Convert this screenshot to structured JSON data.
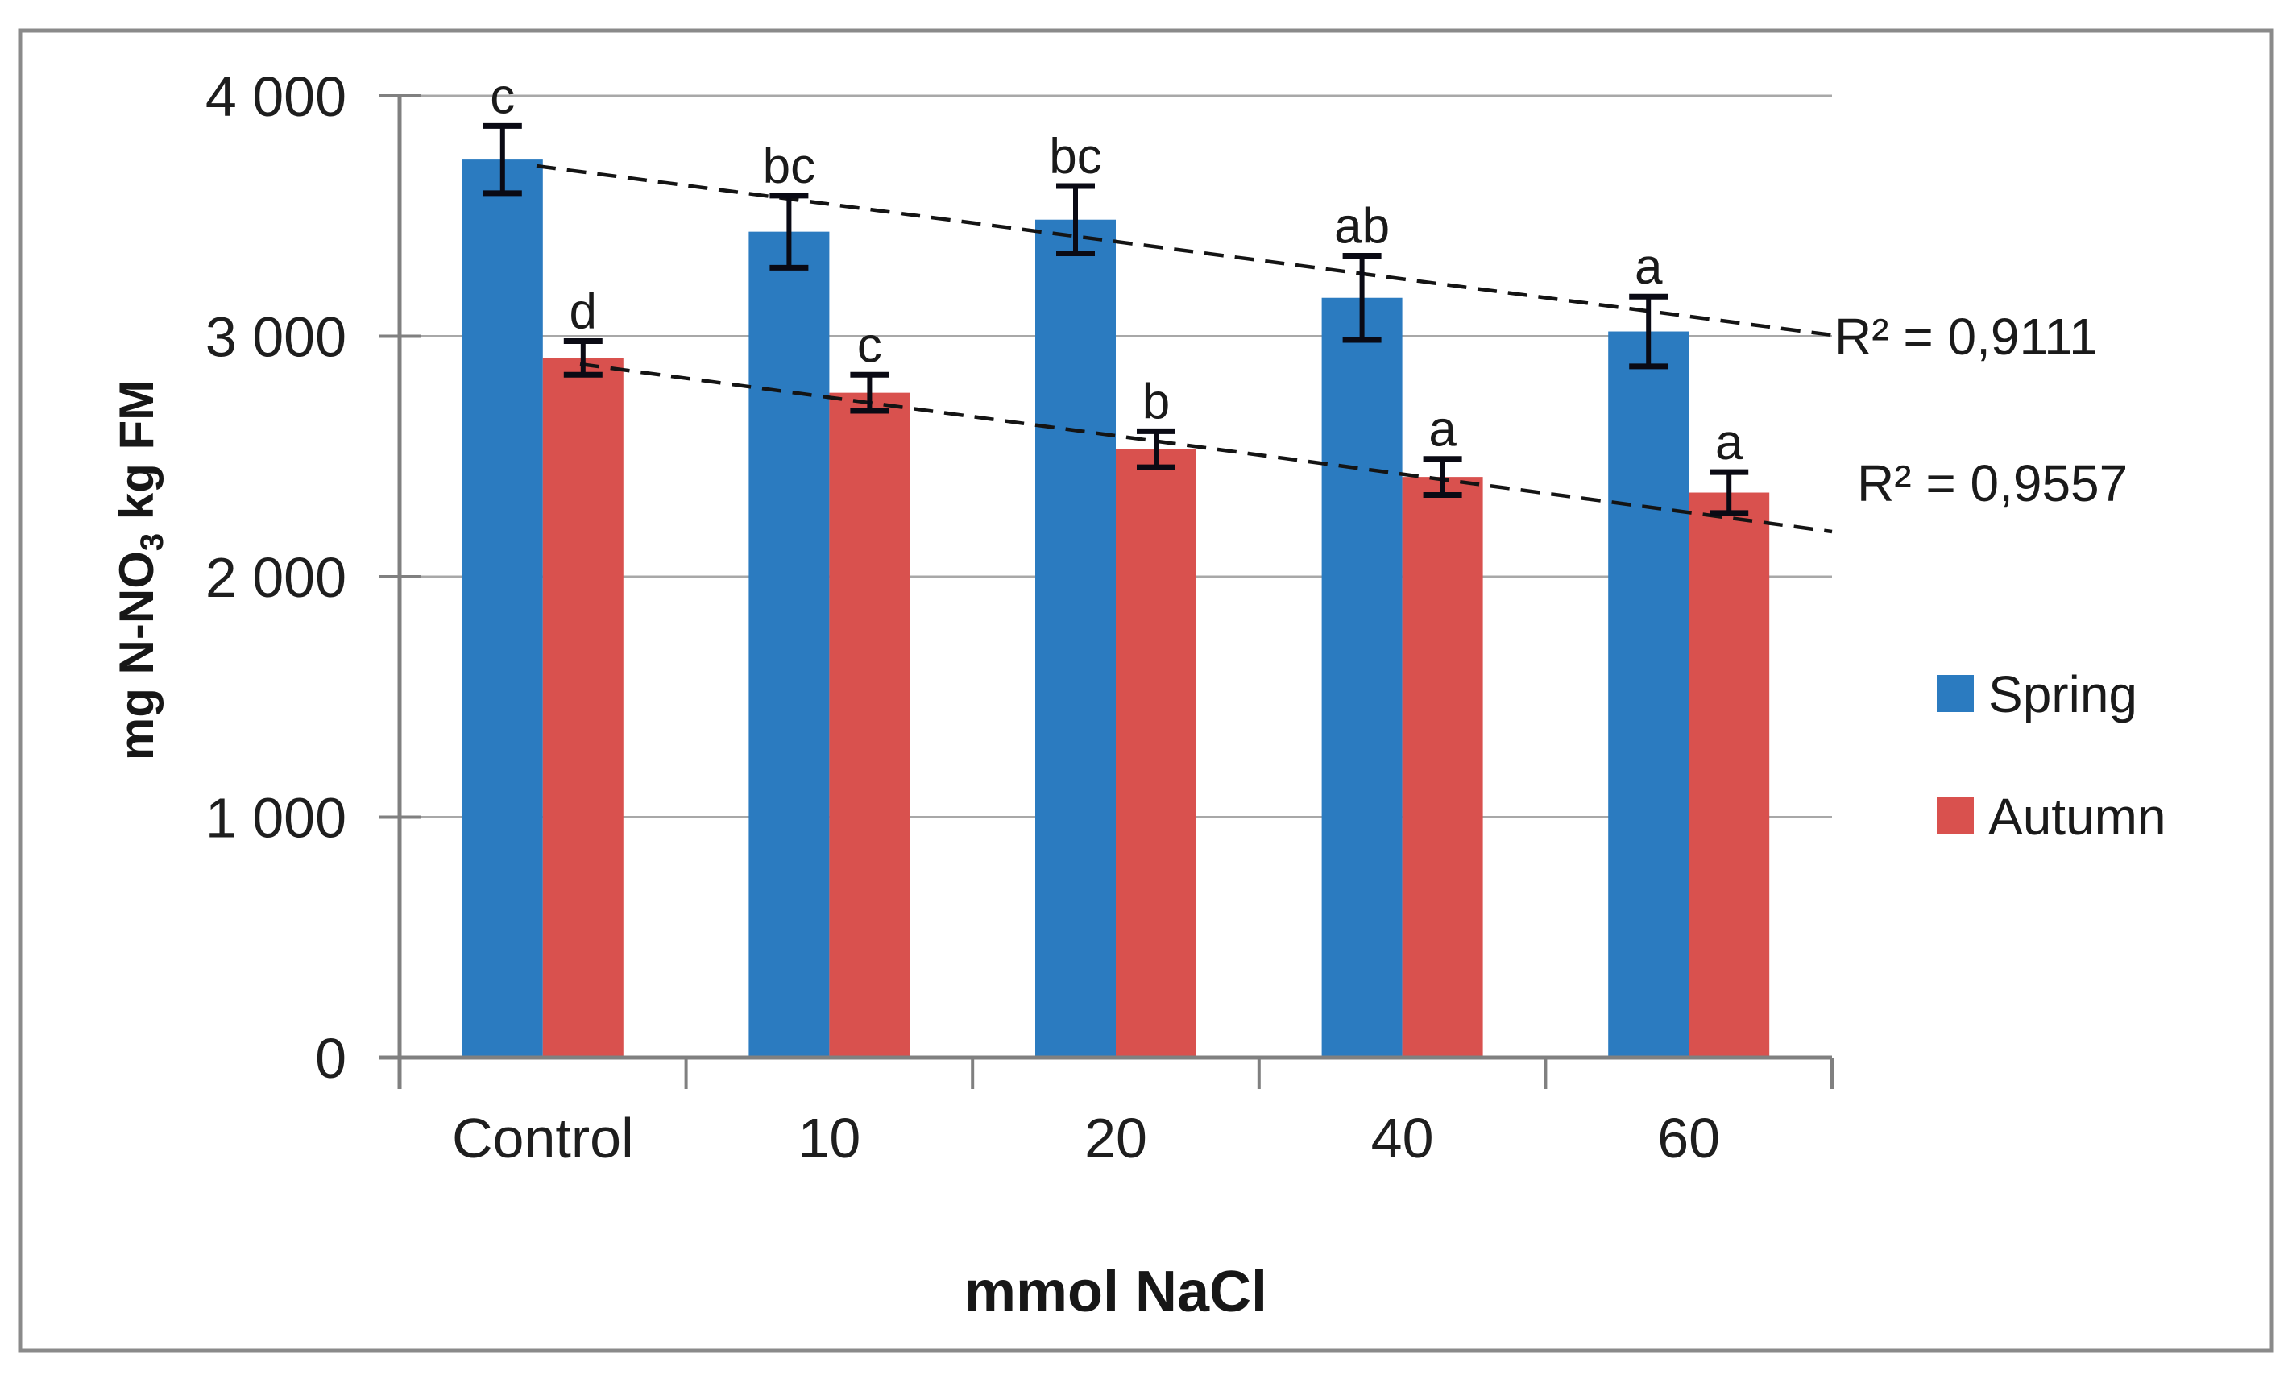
{
  "palette": {
    "spring_blue": "#2B7BC0",
    "autumn_red": "#D9514E",
    "gridline": "#A8A8A8",
    "axis_line": "#808080",
    "chart_border": "#8A8A8A",
    "trendline": "#141414",
    "error_bar": "#0a0a14",
    "text": "#1e1e1e"
  },
  "chart_data": {
    "type": "bar",
    "title": "",
    "categories": [
      "Control",
      "10",
      "20",
      "40",
      "60"
    ],
    "xlabel": "mmol NaCl",
    "ylabel": {
      "pre": "mg N-NO",
      "sub": "3",
      "post": " kg FM"
    },
    "ylim": [
      0,
      4000
    ],
    "ytick_values": [
      0,
      1000,
      2000,
      3000,
      4000
    ],
    "ytick_labels": [
      "0",
      "1 000",
      "2 000",
      "3 000",
      "4 000"
    ],
    "grid": "horizontal",
    "legend_position": "right",
    "series": [
      {
        "name": "Spring",
        "color": "#2B7BC0",
        "values": [
          3735,
          3435,
          3485,
          3160,
          3020
        ],
        "errors": [
          140,
          150,
          140,
          175,
          145
        ],
        "letters": [
          "c",
          "bc",
          "bc",
          "ab",
          "a"
        ],
        "trendline": true,
        "r2_label": "R² = 0,9111"
      },
      {
        "name": "Autumn",
        "color": "#D9514E",
        "values": [
          2910,
          2765,
          2530,
          2415,
          2350
        ],
        "errors": [
          70,
          75,
          75,
          75,
          85
        ],
        "letters": [
          "d",
          "c",
          "b",
          "a",
          "a"
        ],
        "trendline": true,
        "r2_label": "R² = 0,9557"
      }
    ]
  }
}
